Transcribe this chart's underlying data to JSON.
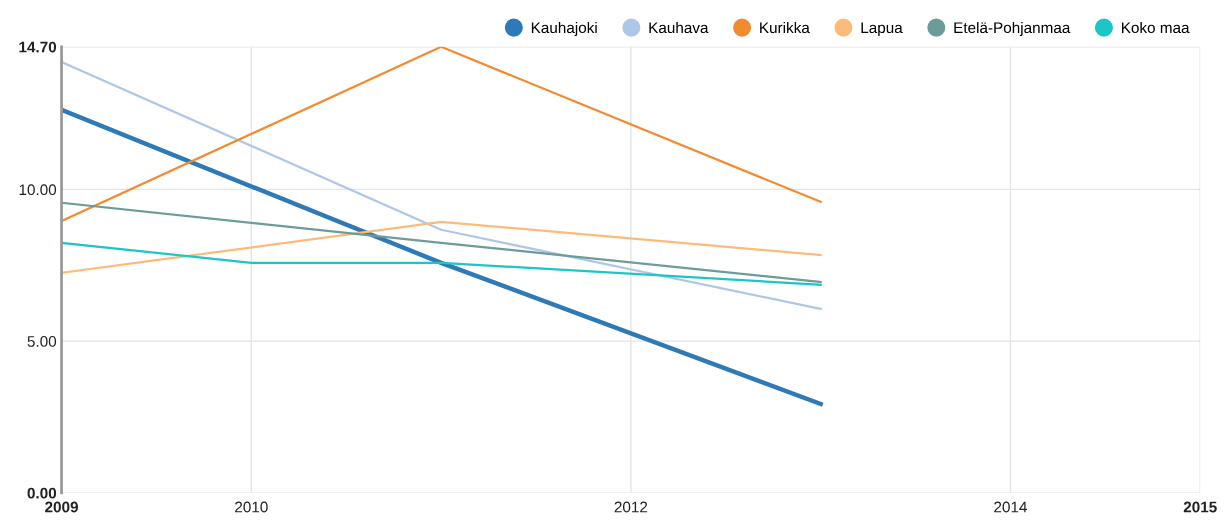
{
  "chart_data": {
    "type": "line",
    "series": [
      {
        "name": "Kauhajoki",
        "color": "#2e7ab6",
        "x": [
          2009,
          2011,
          2013
        ],
        "values": [
          12.62,
          7.58,
          2.93
        ]
      },
      {
        "name": "Kauhava",
        "color": "#aec7e8",
        "x": [
          2009,
          2011,
          2013
        ],
        "values": [
          14.2,
          8.67,
          6.06
        ]
      },
      {
        "name": "Kurikka",
        "color": "#f28a30",
        "x": [
          2009,
          2011,
          2013
        ],
        "values": [
          8.96,
          14.7,
          9.59
        ]
      },
      {
        "name": "Lapua",
        "color": "#fdbb7a",
        "x": [
          2009,
          2011,
          2013
        ],
        "values": [
          7.25,
          8.93,
          7.84
        ]
      },
      {
        "name": "Etelä-Pohjanmaa",
        "color": "#6b9c9a",
        "x": [
          2009,
          2011,
          2013
        ],
        "values": [
          9.56,
          8.24,
          6.95
        ]
      },
      {
        "name": "Koko maa",
        "color": "#1cc6c6",
        "x": [
          2009,
          2010,
          2011,
          2013
        ],
        "values": [
          8.24,
          7.58,
          7.58,
          6.86
        ]
      }
    ],
    "xlim": [
      2009,
      2015
    ],
    "xticks": [
      2009,
      2010,
      2012,
      2014,
      2015
    ],
    "ylim": [
      0,
      14.7
    ],
    "yticks": [
      {
        "value": 0,
        "label": "0.00"
      },
      {
        "value": 5,
        "label": "5.00"
      },
      {
        "value": 10,
        "label": "10.00"
      },
      {
        "value": 14.7,
        "label": "14.70"
      }
    ],
    "grid": true,
    "legend": "top right",
    "marker": "none",
    "line_style": "solid"
  }
}
